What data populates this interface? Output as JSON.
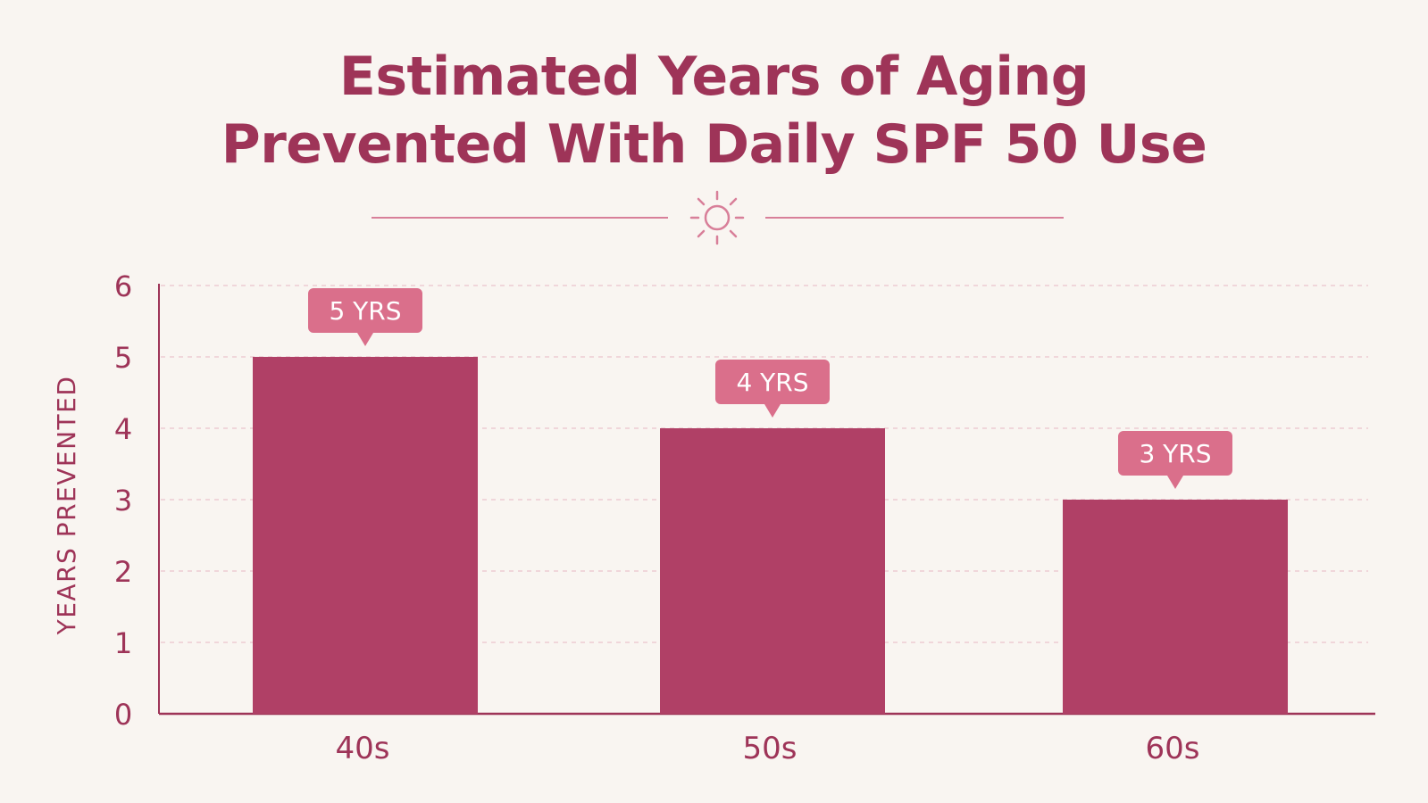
{
  "colors": {
    "background": "#f9f5f1",
    "accent": "#9e3458",
    "bar": "#b04066",
    "label_box": "#da6f8b",
    "label_text": "#ffffff",
    "gridline": "#ecc4cd"
  },
  "header": {
    "title_line1": "Estimated Years of Aging",
    "title_line2": "Prevented With Daily SPF 50 Use",
    "divider_icon": "sun-icon"
  },
  "chart_data": {
    "type": "bar",
    "title": "Estimated Years of Aging Prevented With Daily SPF 50 Use",
    "categories": [
      "40s",
      "50s",
      "60s"
    ],
    "values": [
      5,
      4,
      3
    ],
    "data_labels": [
      "5 YRS",
      "4 YRS",
      "3 YRS"
    ],
    "xlabel": "",
    "ylabel": "YEARS PREVENTED",
    "ylim": [
      0,
      6
    ],
    "yticks": [
      0,
      1,
      2,
      3,
      4,
      5,
      6
    ],
    "grid": true,
    "legend": "none"
  }
}
